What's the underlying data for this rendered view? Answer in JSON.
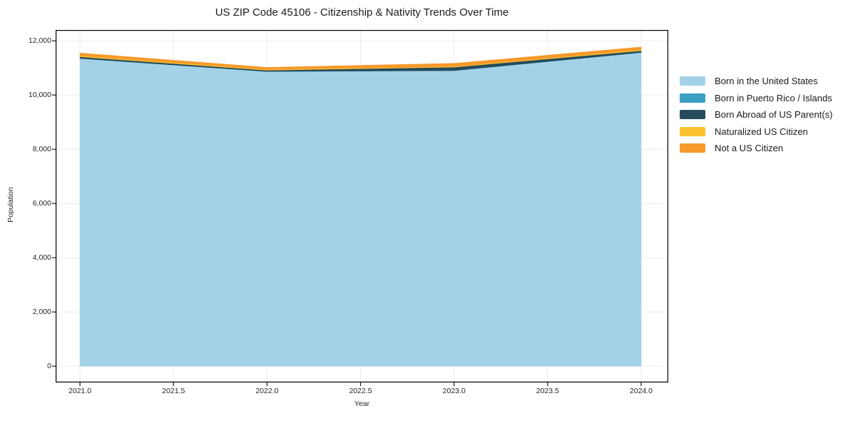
{
  "chart_data": {
    "type": "area",
    "stacked": true,
    "title": "US ZIP Code 45106 - Citizenship & Nativity Trends Over Time",
    "xlabel": "Year",
    "ylabel": "Population",
    "x": [
      2021,
      2022,
      2023,
      2024
    ],
    "series": [
      {
        "name": "Born in the United States",
        "color": "#A3D2E8",
        "values": [
          11350,
          10870,
          10900,
          11570
        ]
      },
      {
        "name": "Born in Puerto Rico / Islands",
        "color": "#3BA0C1",
        "values": [
          0,
          0,
          0,
          0
        ]
      },
      {
        "name": "Born Abroad of US Parent(s)",
        "color": "#254B5C",
        "values": [
          60,
          45,
          130,
          65
        ]
      },
      {
        "name": "Naturalized US Citizen",
        "color": "#FCC231",
        "values": [
          40,
          30,
          25,
          35
        ]
      },
      {
        "name": "Not a US Citizen",
        "color": "#F7992B",
        "values": [
          100,
          75,
          115,
          100
        ]
      }
    ],
    "x_ticks": [
      2021.0,
      2021.5,
      2022.0,
      2022.5,
      2023.0,
      2023.5,
      2024.0
    ],
    "x_tick_labels": [
      "2021.0",
      "2021.5",
      "2022.0",
      "2022.5",
      "2023.0",
      "2023.5",
      "2024.0"
    ],
    "y_ticks": [
      0,
      2000,
      4000,
      6000,
      8000,
      10000,
      12000
    ],
    "y_tick_labels": [
      "0",
      "2,000",
      "4,000",
      "6,000",
      "8,000",
      "10,000",
      "12,000"
    ],
    "xlim": [
      2020.87,
      2024.145
    ],
    "ylim": [
      -600,
      12400
    ],
    "grid": true,
    "legend_position": "right-outside"
  },
  "style": {
    "background": "#ffffff",
    "grid_color": "#ebebeb",
    "frame_color": "#000000",
    "tick_color": "#1a1a1a",
    "text_color": "#262626"
  }
}
